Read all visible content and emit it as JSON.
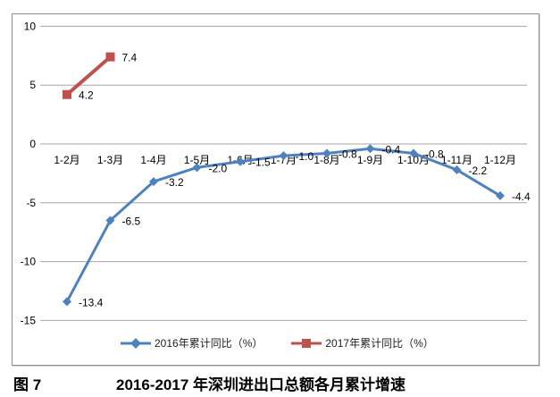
{
  "figure": {
    "label": "图 7",
    "caption": "2016-2017 年深圳进出口总额各月累计增速"
  },
  "chart_data": {
    "type": "line",
    "title": "",
    "xlabel": "",
    "ylabel": "",
    "categories": [
      "1-2月",
      "1-3月",
      "1-4月",
      "1-5月",
      "1-6月",
      "1-7月",
      "1-8月",
      "1-9月",
      "1-10月",
      "1-11月",
      "1-12月"
    ],
    "series": [
      {
        "name": "2016年累计同比（%）",
        "marker": "diamond",
        "color": "#4f81bd",
        "values": [
          -13.4,
          -6.5,
          -3.2,
          -2.0,
          -1.5,
          -1.0,
          -0.8,
          -0.4,
          -0.8,
          -2.2,
          -4.4
        ]
      },
      {
        "name": "2017年累计同比（%）",
        "marker": "square",
        "color": "#c0504d",
        "values": [
          4.2,
          7.4,
          null,
          null,
          null,
          null,
          null,
          null,
          null,
          null,
          null
        ]
      }
    ],
    "yticks": [
      10,
      5,
      0,
      -5,
      -10,
      -15
    ],
    "ylim": [
      -15,
      10
    ],
    "grid": true,
    "gridline_color": "#a6a6a6",
    "axis_text_color": "#000000",
    "legend_position": "bottom-inside",
    "data_labels": true
  }
}
